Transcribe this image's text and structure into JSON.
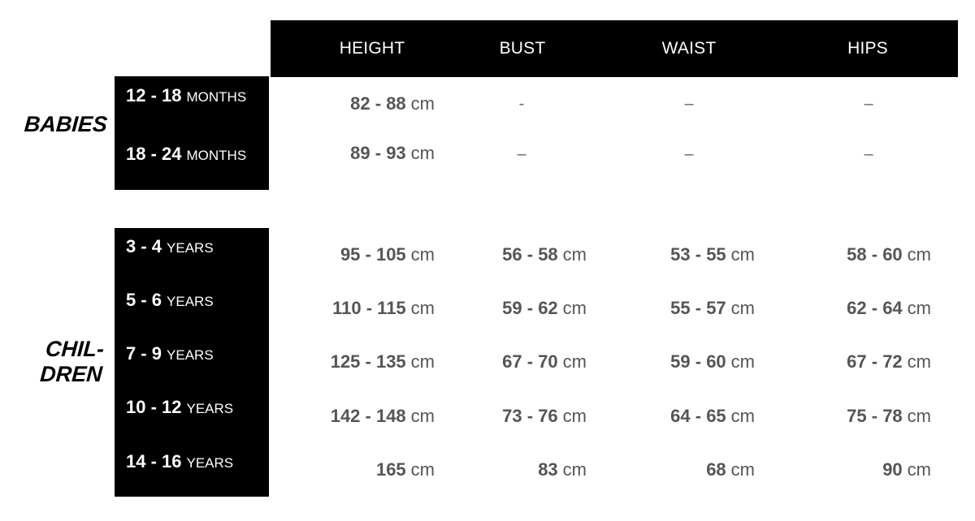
{
  "columns": [
    "HEIGHT",
    "BUST",
    "WAIST",
    "HIPS"
  ],
  "groups": {
    "babies": "BABIES",
    "children_line1": "CHIL-",
    "children_line2": "DREN"
  },
  "babies_rows": [
    {
      "age_num": "12 - 18",
      "age_unit": "MONTHS",
      "height": "82 - 88",
      "height_unit": "cm",
      "bust": "-",
      "waist": "–",
      "hips": "–"
    },
    {
      "age_num": "18 - 24",
      "age_unit": "MONTHS",
      "height": "89 - 93",
      "height_unit": "cm",
      "bust": "–",
      "waist": "–",
      "hips": "–"
    }
  ],
  "children_rows": [
    {
      "age_num": "3 - 4",
      "age_unit": "YEARS",
      "height": "95 - 105",
      "bust": "56 - 58",
      "waist": "53 - 55",
      "hips": "58 - 60",
      "unit": "cm"
    },
    {
      "age_num": "5 - 6",
      "age_unit": "YEARS",
      "height": "110 - 115",
      "bust": "59 - 62",
      "waist": "55 - 57",
      "hips": "62 - 64",
      "unit": "cm"
    },
    {
      "age_num": "7 - 9",
      "age_unit": "YEARS",
      "height": "125 - 135",
      "bust": "67 - 70",
      "waist": "59 - 60",
      "hips": "67 - 72",
      "unit": "cm"
    },
    {
      "age_num": "10 - 12",
      "age_unit": "YEARS",
      "height": "142 - 148",
      "bust": "73 - 76",
      "waist": "64 - 65",
      "hips": "75 - 78",
      "unit": "cm"
    },
    {
      "age_num": "14 - 16",
      "age_unit": "YEARS",
      "height": "165",
      "bust": "83",
      "waist": "68",
      "hips": "90",
      "unit": "cm"
    }
  ]
}
